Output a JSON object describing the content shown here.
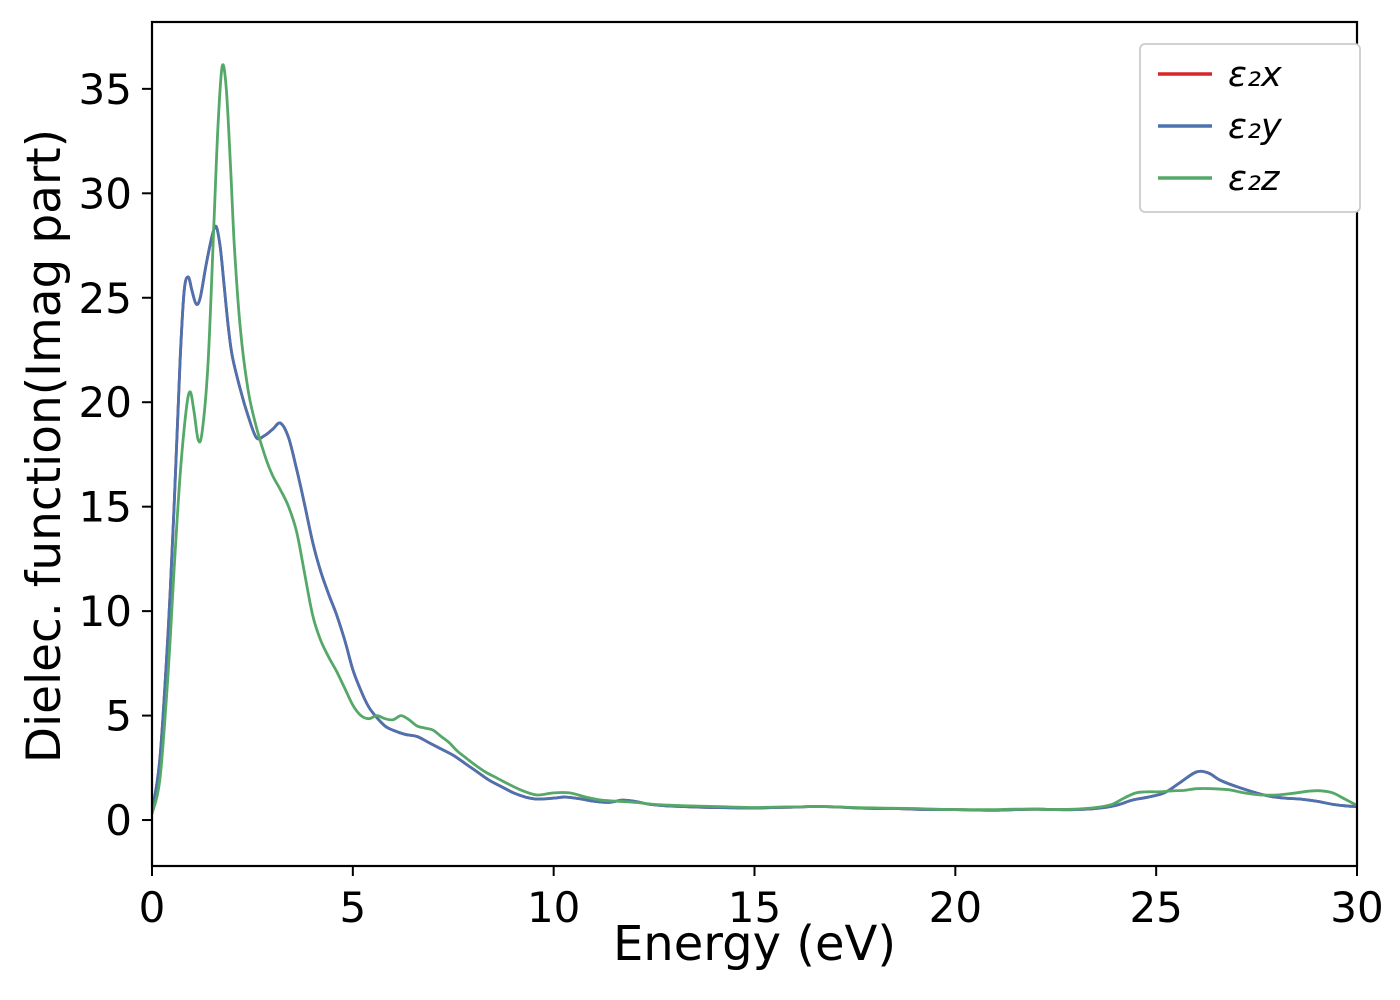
{
  "figure": {
    "background": "#ffffff",
    "frame_color": "#000000",
    "tick_label_color": "#000000"
  },
  "chart_data": {
    "type": "line",
    "title": "",
    "xlabel": "Energy (eV)",
    "ylabel": "Dielec. function(Imag part)",
    "xlim": [
      0,
      30
    ],
    "ylim": [
      -2.2,
      38.2
    ],
    "xticks": [
      0,
      5,
      10,
      15,
      20,
      25,
      30
    ],
    "yticks": [
      0,
      5,
      10,
      15,
      20,
      25,
      30,
      35
    ],
    "grid": false,
    "legend": {
      "position": "upper right",
      "border_color": "#cccccc",
      "background": "#ffffff"
    },
    "series": [
      {
        "name": "ε₂x",
        "color": "#d62728",
        "points": [
          [
            0,
            0.4
          ],
          [
            0.2,
            3.0
          ],
          [
            0.4,
            9.0
          ],
          [
            0.55,
            15.0
          ],
          [
            0.7,
            22.0
          ],
          [
            0.8,
            25.3
          ],
          [
            0.9,
            26.0
          ],
          [
            1.0,
            25.3
          ],
          [
            1.1,
            24.7
          ],
          [
            1.2,
            25.0
          ],
          [
            1.35,
            26.6
          ],
          [
            1.5,
            28.0
          ],
          [
            1.6,
            28.4
          ],
          [
            1.7,
            27.4
          ],
          [
            1.8,
            25.5
          ],
          [
            1.9,
            23.6
          ],
          [
            2.0,
            22.2
          ],
          [
            2.2,
            20.6
          ],
          [
            2.4,
            19.3
          ],
          [
            2.6,
            18.3
          ],
          [
            2.8,
            18.4
          ],
          [
            3.0,
            18.7
          ],
          [
            3.2,
            19.0
          ],
          [
            3.4,
            18.3
          ],
          [
            3.6,
            16.8
          ],
          [
            3.8,
            15.1
          ],
          [
            4.0,
            13.3
          ],
          [
            4.2,
            11.9
          ],
          [
            4.4,
            10.8
          ],
          [
            4.6,
            9.8
          ],
          [
            4.8,
            8.6
          ],
          [
            5.0,
            7.2
          ],
          [
            5.2,
            6.2
          ],
          [
            5.4,
            5.4
          ],
          [
            5.6,
            4.9
          ],
          [
            5.8,
            4.5
          ],
          [
            6.0,
            4.3
          ],
          [
            6.3,
            4.1
          ],
          [
            6.6,
            4.0
          ],
          [
            6.9,
            3.7
          ],
          [
            7.2,
            3.4
          ],
          [
            7.5,
            3.1
          ],
          [
            7.8,
            2.7
          ],
          [
            8.1,
            2.3
          ],
          [
            8.4,
            1.9
          ],
          [
            8.7,
            1.6
          ],
          [
            9.0,
            1.3
          ],
          [
            9.3,
            1.1
          ],
          [
            9.6,
            1.0
          ],
          [
            10.0,
            1.05
          ],
          [
            10.3,
            1.1
          ],
          [
            10.7,
            1.0
          ],
          [
            11.0,
            0.9
          ],
          [
            11.4,
            0.85
          ],
          [
            11.7,
            0.95
          ],
          [
            12.0,
            0.9
          ],
          [
            12.4,
            0.75
          ],
          [
            12.8,
            0.68
          ],
          [
            13.2,
            0.65
          ],
          [
            13.6,
            0.62
          ],
          [
            14.0,
            0.6
          ],
          [
            14.5,
            0.58
          ],
          [
            15.0,
            0.57
          ],
          [
            15.5,
            0.6
          ],
          [
            16.0,
            0.62
          ],
          [
            16.5,
            0.65
          ],
          [
            17.0,
            0.63
          ],
          [
            17.5,
            0.58
          ],
          [
            18.0,
            0.55
          ],
          [
            18.5,
            0.55
          ],
          [
            19.0,
            0.52
          ],
          [
            19.5,
            0.5
          ],
          [
            20.0,
            0.5
          ],
          [
            20.5,
            0.48
          ],
          [
            21.0,
            0.47
          ],
          [
            21.5,
            0.5
          ],
          [
            22.0,
            0.52
          ],
          [
            22.5,
            0.5
          ],
          [
            23.0,
            0.5
          ],
          [
            23.5,
            0.55
          ],
          [
            24.0,
            0.7
          ],
          [
            24.4,
            0.95
          ],
          [
            24.8,
            1.1
          ],
          [
            25.2,
            1.3
          ],
          [
            25.6,
            1.8
          ],
          [
            26.0,
            2.3
          ],
          [
            26.3,
            2.25
          ],
          [
            26.6,
            1.9
          ],
          [
            27.0,
            1.6
          ],
          [
            27.4,
            1.35
          ],
          [
            27.8,
            1.15
          ],
          [
            28.2,
            1.05
          ],
          [
            28.6,
            1.0
          ],
          [
            29.0,
            0.9
          ],
          [
            29.4,
            0.75
          ],
          [
            29.7,
            0.68
          ],
          [
            30.0,
            0.65
          ]
        ]
      },
      {
        "name": "ε₂y",
        "color": "#4c72b0",
        "points": [
          [
            0,
            0.4
          ],
          [
            0.2,
            3.0
          ],
          [
            0.4,
            9.0
          ],
          [
            0.55,
            15.0
          ],
          [
            0.7,
            22.0
          ],
          [
            0.8,
            25.3
          ],
          [
            0.9,
            26.0
          ],
          [
            1.0,
            25.3
          ],
          [
            1.1,
            24.7
          ],
          [
            1.2,
            25.0
          ],
          [
            1.35,
            26.6
          ],
          [
            1.5,
            28.0
          ],
          [
            1.6,
            28.4
          ],
          [
            1.7,
            27.4
          ],
          [
            1.8,
            25.5
          ],
          [
            1.9,
            23.6
          ],
          [
            2.0,
            22.2
          ],
          [
            2.2,
            20.6
          ],
          [
            2.4,
            19.3
          ],
          [
            2.6,
            18.3
          ],
          [
            2.8,
            18.4
          ],
          [
            3.0,
            18.7
          ],
          [
            3.2,
            19.0
          ],
          [
            3.4,
            18.3
          ],
          [
            3.6,
            16.8
          ],
          [
            3.8,
            15.1
          ],
          [
            4.0,
            13.3
          ],
          [
            4.2,
            11.9
          ],
          [
            4.4,
            10.8
          ],
          [
            4.6,
            9.8
          ],
          [
            4.8,
            8.6
          ],
          [
            5.0,
            7.2
          ],
          [
            5.2,
            6.2
          ],
          [
            5.4,
            5.4
          ],
          [
            5.6,
            4.9
          ],
          [
            5.8,
            4.5
          ],
          [
            6.0,
            4.3
          ],
          [
            6.3,
            4.1
          ],
          [
            6.6,
            4.0
          ],
          [
            6.9,
            3.7
          ],
          [
            7.2,
            3.4
          ],
          [
            7.5,
            3.1
          ],
          [
            7.8,
            2.7
          ],
          [
            8.1,
            2.3
          ],
          [
            8.4,
            1.9
          ],
          [
            8.7,
            1.6
          ],
          [
            9.0,
            1.3
          ],
          [
            9.3,
            1.1
          ],
          [
            9.6,
            1.0
          ],
          [
            10.0,
            1.05
          ],
          [
            10.3,
            1.1
          ],
          [
            10.7,
            1.0
          ],
          [
            11.0,
            0.9
          ],
          [
            11.4,
            0.85
          ],
          [
            11.7,
            0.95
          ],
          [
            12.0,
            0.9
          ],
          [
            12.4,
            0.75
          ],
          [
            12.8,
            0.68
          ],
          [
            13.2,
            0.65
          ],
          [
            13.6,
            0.62
          ],
          [
            14.0,
            0.6
          ],
          [
            14.5,
            0.58
          ],
          [
            15.0,
            0.57
          ],
          [
            15.5,
            0.6
          ],
          [
            16.0,
            0.62
          ],
          [
            16.5,
            0.65
          ],
          [
            17.0,
            0.63
          ],
          [
            17.5,
            0.58
          ],
          [
            18.0,
            0.55
          ],
          [
            18.5,
            0.55
          ],
          [
            19.0,
            0.52
          ],
          [
            19.5,
            0.5
          ],
          [
            20.0,
            0.5
          ],
          [
            20.5,
            0.48
          ],
          [
            21.0,
            0.47
          ],
          [
            21.5,
            0.5
          ],
          [
            22.0,
            0.52
          ],
          [
            22.5,
            0.5
          ],
          [
            23.0,
            0.5
          ],
          [
            23.5,
            0.55
          ],
          [
            24.0,
            0.7
          ],
          [
            24.4,
            0.95
          ],
          [
            24.8,
            1.1
          ],
          [
            25.2,
            1.3
          ],
          [
            25.6,
            1.8
          ],
          [
            26.0,
            2.3
          ],
          [
            26.3,
            2.25
          ],
          [
            26.6,
            1.9
          ],
          [
            27.0,
            1.6
          ],
          [
            27.4,
            1.35
          ],
          [
            27.8,
            1.15
          ],
          [
            28.2,
            1.05
          ],
          [
            28.6,
            1.0
          ],
          [
            29.0,
            0.9
          ],
          [
            29.4,
            0.75
          ],
          [
            29.7,
            0.68
          ],
          [
            30.0,
            0.65
          ]
        ]
      },
      {
        "name": "ε₂z",
        "color": "#55a868",
        "points": [
          [
            0,
            0.3
          ],
          [
            0.2,
            2.0
          ],
          [
            0.4,
            7.0
          ],
          [
            0.55,
            12.0
          ],
          [
            0.7,
            16.5
          ],
          [
            0.85,
            19.6
          ],
          [
            0.95,
            20.5
          ],
          [
            1.05,
            19.5
          ],
          [
            1.15,
            18.2
          ],
          [
            1.25,
            18.6
          ],
          [
            1.4,
            22.0
          ],
          [
            1.55,
            29.0
          ],
          [
            1.65,
            33.5
          ],
          [
            1.75,
            36.1
          ],
          [
            1.85,
            35.0
          ],
          [
            1.95,
            31.5
          ],
          [
            2.05,
            27.5
          ],
          [
            2.2,
            23.5
          ],
          [
            2.4,
            20.5
          ],
          [
            2.6,
            18.8
          ],
          [
            2.8,
            17.5
          ],
          [
            3.0,
            16.5
          ],
          [
            3.2,
            15.8
          ],
          [
            3.4,
            15.0
          ],
          [
            3.6,
            13.8
          ],
          [
            3.8,
            11.8
          ],
          [
            4.0,
            9.8
          ],
          [
            4.2,
            8.6
          ],
          [
            4.4,
            7.8
          ],
          [
            4.6,
            7.1
          ],
          [
            4.8,
            6.3
          ],
          [
            5.0,
            5.5
          ],
          [
            5.2,
            5.0
          ],
          [
            5.4,
            4.85
          ],
          [
            5.6,
            5.0
          ],
          [
            5.8,
            4.85
          ],
          [
            6.0,
            4.8
          ],
          [
            6.2,
            5.0
          ],
          [
            6.4,
            4.8
          ],
          [
            6.6,
            4.5
          ],
          [
            6.8,
            4.4
          ],
          [
            7.0,
            4.3
          ],
          [
            7.2,
            4.0
          ],
          [
            7.4,
            3.7
          ],
          [
            7.6,
            3.3
          ],
          [
            7.8,
            3.0
          ],
          [
            8.0,
            2.7
          ],
          [
            8.3,
            2.3
          ],
          [
            8.6,
            2.0
          ],
          [
            9.0,
            1.6
          ],
          [
            9.3,
            1.35
          ],
          [
            9.6,
            1.2
          ],
          [
            10.0,
            1.3
          ],
          [
            10.4,
            1.3
          ],
          [
            10.8,
            1.1
          ],
          [
            11.2,
            0.95
          ],
          [
            11.6,
            0.9
          ],
          [
            12.0,
            0.85
          ],
          [
            12.5,
            0.75
          ],
          [
            13.0,
            0.7
          ],
          [
            13.5,
            0.67
          ],
          [
            14.0,
            0.65
          ],
          [
            14.5,
            0.62
          ],
          [
            15.0,
            0.6
          ],
          [
            15.5,
            0.62
          ],
          [
            16.0,
            0.63
          ],
          [
            16.5,
            0.65
          ],
          [
            17.0,
            0.63
          ],
          [
            17.5,
            0.6
          ],
          [
            18.0,
            0.58
          ],
          [
            18.5,
            0.56
          ],
          [
            19.0,
            0.55
          ],
          [
            19.5,
            0.52
          ],
          [
            20.0,
            0.5
          ],
          [
            20.5,
            0.5
          ],
          [
            21.0,
            0.5
          ],
          [
            21.5,
            0.52
          ],
          [
            22.0,
            0.52
          ],
          [
            22.5,
            0.5
          ],
          [
            23.0,
            0.52
          ],
          [
            23.5,
            0.6
          ],
          [
            23.9,
            0.75
          ],
          [
            24.2,
            1.05
          ],
          [
            24.5,
            1.3
          ],
          [
            24.8,
            1.35
          ],
          [
            25.1,
            1.35
          ],
          [
            25.4,
            1.4
          ],
          [
            25.7,
            1.42
          ],
          [
            26.0,
            1.5
          ],
          [
            26.4,
            1.5
          ],
          [
            26.8,
            1.45
          ],
          [
            27.2,
            1.3
          ],
          [
            27.6,
            1.2
          ],
          [
            28.0,
            1.2
          ],
          [
            28.4,
            1.28
          ],
          [
            28.8,
            1.38
          ],
          [
            29.1,
            1.4
          ],
          [
            29.4,
            1.3
          ],
          [
            29.7,
            1.0
          ],
          [
            30.0,
            0.7
          ]
        ]
      }
    ]
  }
}
